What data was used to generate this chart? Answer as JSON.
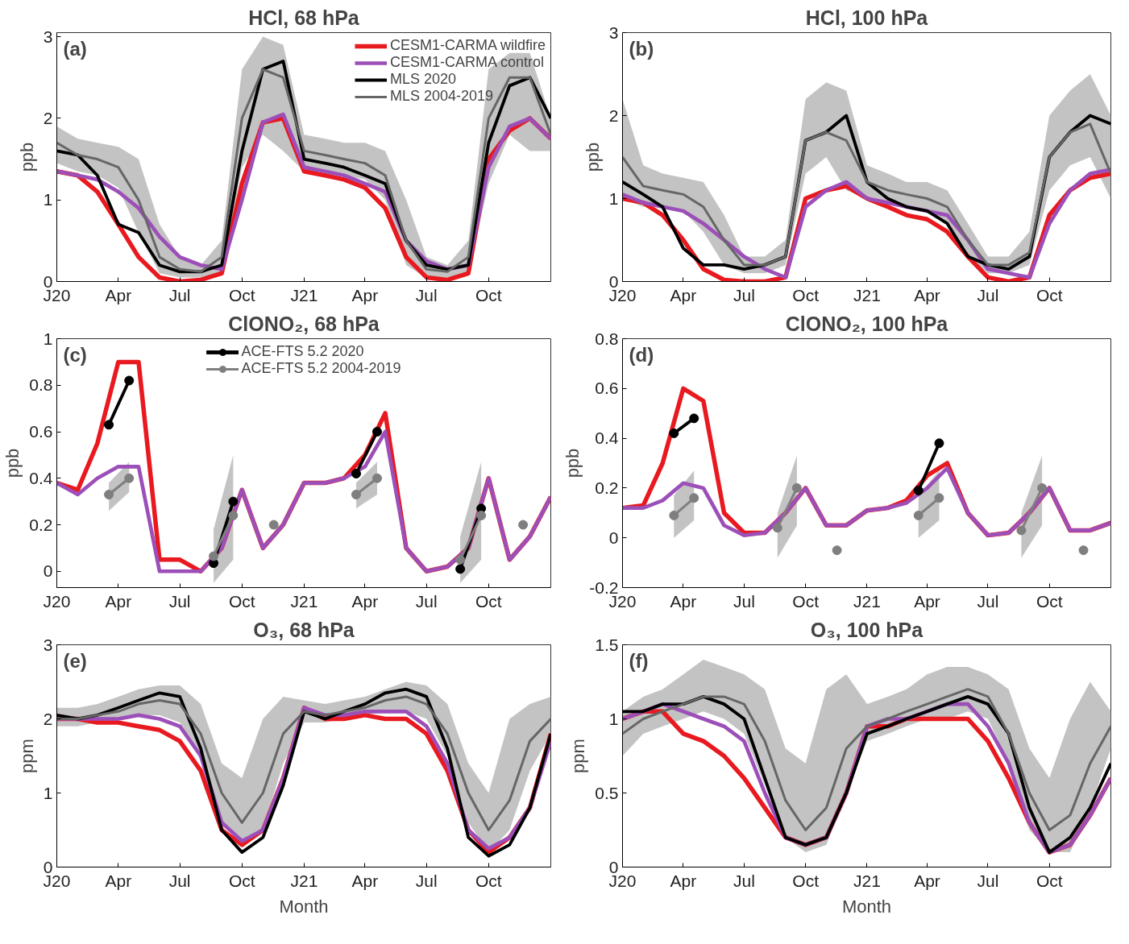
{
  "chart_data": [
    {
      "type": "line",
      "title": "HCl, 68 hPa",
      "ylabel": "ppb",
      "annotations": [
        "(a)"
      ],
      "legend": "top right",
      "marker": "none",
      "x": [
        "2020-01-01",
        "2020-02-01",
        "2020-03-01",
        "2020-04-01",
        "2020-05-01",
        "2020-06-01",
        "2020-07-01",
        "2020-08-01",
        "2020-09-01",
        "2020-10-01",
        "2020-11-01",
        "2020-12-01",
        "2021-01-01",
        "2021-02-01",
        "2021-03-01",
        "2021-04-01",
        "2021-05-01",
        "2021-06-01",
        "2021-07-01",
        "2021-08-01",
        "2021-09-01",
        "2021-10-01",
        "2021-11-01",
        "2021-12-01",
        "2022-01-01"
      ],
      "xlim": [
        "2020-01-01",
        "2022-01-01"
      ],
      "xticks": [
        {
          "value": "2020-01-01",
          "label": "J20"
        },
        {
          "value": "2020-04-01",
          "label": "Apr"
        },
        {
          "value": "2020-07-01",
          "label": "Jul"
        },
        {
          "value": "2020-10-01",
          "label": "Oct"
        },
        {
          "value": "2021-01-01",
          "label": "J21"
        },
        {
          "value": "2021-04-01",
          "label": "Apr"
        },
        {
          "value": "2021-07-01",
          "label": "Jul"
        },
        {
          "value": "2021-10-01",
          "label": "Oct"
        }
      ],
      "ylim": [
        0,
        3.05
      ],
      "yticks": [
        0,
        1,
        2,
        3
      ],
      "series": [
        {
          "name": "CESM1-CARMA wildfire",
          "color": "#e8191f",
          "values": [
            1.35,
            1.3,
            1.1,
            0.7,
            0.3,
            0.05,
            0.0,
            0.02,
            0.1,
            1.2,
            1.95,
            2.0,
            1.35,
            1.3,
            1.25,
            1.15,
            0.9,
            0.3,
            0.05,
            0.02,
            0.1,
            1.5,
            1.85,
            2.0,
            1.75
          ]
        },
        {
          "name": "CESM1-CARMA control",
          "color": "#9c4fb8",
          "values": [
            1.35,
            1.3,
            1.25,
            1.1,
            0.9,
            0.55,
            0.3,
            0.2,
            0.15,
            1.0,
            1.95,
            2.05,
            1.4,
            1.35,
            1.3,
            1.2,
            1.1,
            0.5,
            0.25,
            0.15,
            0.2,
            1.4,
            1.9,
            2.0,
            1.75
          ]
        },
        {
          "name": "MLS 2020",
          "color": "#000000",
          "values": [
            1.6,
            1.55,
            1.3,
            0.7,
            0.6,
            0.2,
            0.12,
            0.12,
            0.2,
            1.6,
            2.6,
            2.7,
            1.5,
            1.45,
            1.4,
            1.3,
            1.2,
            0.5,
            0.2,
            0.15,
            0.2,
            1.7,
            2.4,
            2.5,
            2.0
          ]
        },
        {
          "name": "MLS 2004-2019",
          "color": "#666666",
          "values": [
            1.7,
            1.55,
            1.5,
            1.4,
            1.0,
            0.3,
            0.15,
            0.12,
            0.3,
            2.0,
            2.6,
            2.5,
            1.6,
            1.55,
            1.5,
            1.45,
            1.3,
            0.5,
            0.15,
            0.12,
            0.3,
            2.0,
            2.5,
            2.5,
            1.8
          ],
          "lower": [
            1.45,
            1.35,
            1.3,
            1.15,
            0.6,
            0.1,
            0.05,
            0.05,
            0.1,
            1.4,
            1.8,
            1.6,
            1.35,
            1.35,
            1.3,
            1.25,
            1.0,
            0.2,
            0.05,
            0.05,
            0.1,
            1.2,
            1.8,
            1.6,
            1.6
          ],
          "upper": [
            1.9,
            1.75,
            1.7,
            1.65,
            1.5,
            0.7,
            0.3,
            0.2,
            0.5,
            2.6,
            3.0,
            2.9,
            1.8,
            1.75,
            1.7,
            1.7,
            1.6,
            1.0,
            0.3,
            0.2,
            0.5,
            2.6,
            2.8,
            2.8,
            2.0
          ]
        }
      ]
    },
    {
      "type": "line",
      "title": "HCl, 100 hPa",
      "ylabel": "ppb",
      "annotations": [
        "(b)"
      ],
      "marker": "none",
      "x": [
        "2020-01-01",
        "2020-02-01",
        "2020-03-01",
        "2020-04-01",
        "2020-05-01",
        "2020-06-01",
        "2020-07-01",
        "2020-08-01",
        "2020-09-01",
        "2020-10-01",
        "2020-11-01",
        "2020-12-01",
        "2021-01-01",
        "2021-02-01",
        "2021-03-01",
        "2021-04-01",
        "2021-05-01",
        "2021-06-01",
        "2021-07-01",
        "2021-08-01",
        "2021-09-01",
        "2021-10-01",
        "2021-11-01",
        "2021-12-01",
        "2022-01-01"
      ],
      "xlim": [
        "2020-01-01",
        "2022-01-01"
      ],
      "xticks": [
        {
          "value": "2020-01-01",
          "label": "J20"
        },
        {
          "value": "2020-04-01",
          "label": "Apr"
        },
        {
          "value": "2020-07-01",
          "label": "Jul"
        },
        {
          "value": "2020-10-01",
          "label": "Oct"
        },
        {
          "value": "2021-01-01",
          "label": "J21"
        },
        {
          "value": "2021-04-01",
          "label": "Apr"
        },
        {
          "value": "2021-07-01",
          "label": "Jul"
        },
        {
          "value": "2021-10-01",
          "label": "Oct"
        }
      ],
      "ylim": [
        0,
        3
      ],
      "yticks": [
        0,
        1,
        2,
        3
      ],
      "series": [
        {
          "color": "#e8191f",
          "values": [
            1.0,
            0.95,
            0.8,
            0.5,
            0.15,
            0.02,
            0.0,
            0.0,
            0.05,
            1.0,
            1.1,
            1.15,
            1.0,
            0.9,
            0.8,
            0.75,
            0.6,
            0.3,
            0.05,
            0.0,
            0.05,
            0.8,
            1.1,
            1.25,
            1.3
          ]
        },
        {
          "color": "#9c4fb8",
          "values": [
            1.05,
            0.95,
            0.9,
            0.85,
            0.7,
            0.5,
            0.3,
            0.15,
            0.05,
            0.9,
            1.1,
            1.2,
            1.0,
            0.95,
            0.9,
            0.85,
            0.8,
            0.5,
            0.15,
            0.1,
            0.05,
            0.7,
            1.1,
            1.3,
            1.35
          ]
        },
        {
          "color": "#000000",
          "values": [
            1.2,
            1.05,
            0.9,
            0.4,
            0.2,
            0.2,
            0.15,
            0.2,
            0.3,
            1.7,
            1.8,
            2.0,
            1.2,
            1.0,
            0.9,
            0.85,
            0.7,
            0.3,
            0.2,
            0.15,
            0.3,
            1.5,
            1.8,
            2.0,
            1.9
          ]
        },
        {
          "color": "#666666",
          "values": [
            1.5,
            1.15,
            1.1,
            1.05,
            0.9,
            0.5,
            0.2,
            0.2,
            0.3,
            1.7,
            1.8,
            1.7,
            1.2,
            1.1,
            1.05,
            1.0,
            0.9,
            0.5,
            0.2,
            0.2,
            0.35,
            1.5,
            1.8,
            1.9,
            1.3
          ],
          "lower": [
            1.0,
            0.9,
            0.9,
            0.85,
            0.6,
            0.2,
            0.1,
            0.1,
            0.2,
            1.3,
            1.5,
            1.1,
            1.0,
            0.95,
            0.9,
            0.85,
            0.7,
            0.3,
            0.1,
            0.1,
            0.2,
            1.1,
            1.4,
            1.5,
            1.0
          ],
          "upper": [
            2.2,
            1.4,
            1.3,
            1.25,
            1.2,
            0.8,
            0.3,
            0.3,
            0.5,
            2.2,
            2.4,
            2.3,
            1.4,
            1.3,
            1.2,
            1.2,
            1.1,
            0.7,
            0.3,
            0.3,
            0.6,
            2.0,
            2.3,
            2.5,
            2.0
          ]
        }
      ]
    },
    {
      "type": "line",
      "title": "ClONO₂, 68 hPa",
      "ylabel": "ppb",
      "annotations": [
        "(c)"
      ],
      "legend": "top",
      "marker": "none",
      "x": [
        "2020-01-01",
        "2020-02-01",
        "2020-03-01",
        "2020-04-01",
        "2020-05-01",
        "2020-06-01",
        "2020-07-01",
        "2020-08-01",
        "2020-09-01",
        "2020-10-01",
        "2020-11-01",
        "2020-12-01",
        "2021-01-01",
        "2021-02-01",
        "2021-03-01",
        "2021-04-01",
        "2021-05-01",
        "2021-06-01",
        "2021-07-01",
        "2021-08-01",
        "2021-09-01",
        "2021-10-01",
        "2021-11-01",
        "2021-12-01",
        "2022-01-01"
      ],
      "xlim": [
        "2020-01-01",
        "2022-01-01"
      ],
      "xticks": [
        {
          "value": "2020-01-01",
          "label": "J20"
        },
        {
          "value": "2020-04-01",
          "label": "Apr"
        },
        {
          "value": "2020-07-01",
          "label": "Jul"
        },
        {
          "value": "2020-10-01",
          "label": "Oct"
        },
        {
          "value": "2021-01-01",
          "label": "J21"
        },
        {
          "value": "2021-04-01",
          "label": "Apr"
        },
        {
          "value": "2021-07-01",
          "label": "Jul"
        },
        {
          "value": "2021-10-01",
          "label": "Oct"
        }
      ],
      "ylim": [
        -0.07,
        1
      ],
      "yticks": [
        0,
        0.2,
        0.4,
        0.6,
        0.8,
        1
      ],
      "series": [
        {
          "color": "#e8191f",
          "values": [
            0.38,
            0.35,
            0.55,
            0.9,
            0.9,
            0.05,
            0.05,
            0.0,
            0.1,
            0.35,
            0.1,
            0.2,
            0.38,
            0.38,
            0.4,
            0.5,
            0.68,
            0.1,
            0.0,
            0.02,
            0.1,
            0.4,
            0.05,
            0.15,
            0.32
          ]
        },
        {
          "color": "#9c4fb8",
          "values": [
            0.38,
            0.33,
            0.4,
            0.45,
            0.45,
            0.0,
            0.0,
            0.0,
            0.1,
            0.35,
            0.1,
            0.2,
            0.38,
            0.38,
            0.4,
            0.45,
            0.6,
            0.1,
            0.0,
            0.02,
            0.1,
            0.4,
            0.05,
            0.15,
            0.32
          ]
        },
        {
          "name": "ACE-FTS 5.2 2020",
          "color": "#000000",
          "marker": "circle",
          "x": [
            "2020-03-18",
            "2020-04-17",
            "2020-06-01",
            "2020-08-20",
            "2020-09-18",
            "2020-12-01",
            "2021-03-19",
            "2021-04-19",
            "2021-06-01",
            "2021-08-20",
            "2021-09-20"
          ],
          "values": [
            0.63,
            0.82,
            null,
            0.035,
            0.3,
            null,
            0.42,
            0.6,
            null,
            0.01,
            0.27
          ]
        },
        {
          "name": "ACE-FTS 5.2 2004-2019",
          "color": "#7f7f7f",
          "marker": "circle",
          "x": [
            "2020-03-18",
            "2020-04-17",
            "2020-06-01",
            "2020-08-20",
            "2020-09-18",
            "2020-10-20",
            "2020-11-17",
            "2021-01-01",
            "2021-03-19",
            "2021-04-19",
            "2021-06-01",
            "2021-08-20",
            "2021-09-20",
            "2021-10-20",
            "2021-11-21"
          ],
          "values": [
            0.33,
            0.4,
            null,
            0.065,
            0.24,
            null,
            0.2,
            null,
            0.33,
            0.4,
            null,
            0.05,
            0.24,
            null,
            0.2
          ],
          "lower": [
            0.26,
            0.34,
            null,
            -0.05,
            0.05,
            null,
            null,
            null,
            0.27,
            0.33,
            null,
            -0.05,
            0.05,
            null,
            null
          ],
          "upper": [
            0.38,
            0.47,
            null,
            0.18,
            0.5,
            null,
            null,
            null,
            0.38,
            0.47,
            null,
            0.15,
            0.47,
            null,
            null
          ]
        }
      ]
    },
    {
      "type": "line",
      "title": "ClONO₂, 100 hPa",
      "ylabel": "ppb",
      "annotations": [
        "(d)"
      ],
      "marker": "none",
      "x": [
        "2020-01-01",
        "2020-02-01",
        "2020-03-01",
        "2020-04-01",
        "2020-05-01",
        "2020-06-01",
        "2020-07-01",
        "2020-08-01",
        "2020-09-01",
        "2020-10-01",
        "2020-11-01",
        "2020-12-01",
        "2021-01-01",
        "2021-02-01",
        "2021-03-01",
        "2021-04-01",
        "2021-05-01",
        "2021-06-01",
        "2021-07-01",
        "2021-08-01",
        "2021-09-01",
        "2021-10-01",
        "2021-11-01",
        "2021-12-01",
        "2022-01-01"
      ],
      "xlim": [
        "2020-01-01",
        "2022-01-01"
      ],
      "xticks": [
        {
          "value": "2020-01-01",
          "label": "J20"
        },
        {
          "value": "2020-04-01",
          "label": "Apr"
        },
        {
          "value": "2020-07-01",
          "label": "Jul"
        },
        {
          "value": "2020-10-01",
          "label": "Oct"
        },
        {
          "value": "2021-01-01",
          "label": "J21"
        },
        {
          "value": "2021-04-01",
          "label": "Apr"
        },
        {
          "value": "2021-07-01",
          "label": "Jul"
        },
        {
          "value": "2021-10-01",
          "label": "Oct"
        }
      ],
      "ylim": [
        -0.2,
        0.8
      ],
      "yticks": [
        -0.2,
        0,
        0.2,
        0.4,
        0.6,
        0.8
      ],
      "series": [
        {
          "color": "#e8191f",
          "values": [
            0.12,
            0.13,
            0.3,
            0.6,
            0.55,
            0.1,
            0.02,
            0.02,
            0.1,
            0.2,
            0.05,
            0.05,
            0.11,
            0.12,
            0.15,
            0.25,
            0.3,
            0.1,
            0.01,
            0.02,
            0.1,
            0.2,
            0.03,
            0.03,
            0.06
          ]
        },
        {
          "color": "#9c4fb8",
          "values": [
            0.12,
            0.12,
            0.15,
            0.22,
            0.2,
            0.05,
            0.01,
            0.02,
            0.1,
            0.2,
            0.05,
            0.05,
            0.11,
            0.12,
            0.14,
            0.2,
            0.28,
            0.1,
            0.01,
            0.02,
            0.1,
            0.2,
            0.03,
            0.03,
            0.06
          ]
        },
        {
          "color": "#000000",
          "marker": "circle",
          "x": [
            "2020-03-18",
            "2020-04-17",
            "2020-12-01",
            "2021-03-19",
            "2021-04-19"
          ],
          "values": [
            0.42,
            0.48,
            null,
            0.19,
            0.38
          ]
        },
        {
          "color": "#7f7f7f",
          "marker": "circle",
          "x": [
            "2020-03-18",
            "2020-04-17",
            "2020-06-01",
            "2020-08-20",
            "2020-09-18",
            "2020-10-20",
            "2020-11-17",
            "2021-01-01",
            "2021-03-19",
            "2021-04-19",
            "2021-06-01",
            "2021-08-20",
            "2021-09-20",
            "2021-10-20",
            "2021-11-21"
          ],
          "values": [
            0.09,
            0.16,
            null,
            0.04,
            0.2,
            null,
            -0.05,
            null,
            0.09,
            0.16,
            null,
            0.03,
            0.2,
            null,
            -0.05
          ],
          "lower": [
            0.0,
            0.07,
            null,
            -0.08,
            0.05,
            null,
            null,
            null,
            0.0,
            0.07,
            null,
            -0.08,
            0.05,
            null,
            null
          ],
          "upper": [
            0.17,
            0.27,
            null,
            0.1,
            0.33,
            null,
            null,
            null,
            0.17,
            0.27,
            null,
            0.1,
            0.33,
            null,
            null
          ]
        }
      ]
    },
    {
      "type": "line",
      "title": "O₃, 68 hPa",
      "ylabel": "ppm",
      "xlabel": "Month",
      "annotations": [
        "(e)"
      ],
      "marker": "none",
      "x": [
        "2020-01-01",
        "2020-02-01",
        "2020-03-01",
        "2020-04-01",
        "2020-05-01",
        "2020-06-01",
        "2020-07-01",
        "2020-08-01",
        "2020-09-01",
        "2020-10-01",
        "2020-11-01",
        "2020-12-01",
        "2021-01-01",
        "2021-02-01",
        "2021-03-01",
        "2021-04-01",
        "2021-05-01",
        "2021-06-01",
        "2021-07-01",
        "2021-08-01",
        "2021-09-01",
        "2021-10-01",
        "2021-11-01",
        "2021-12-01",
        "2022-01-01"
      ],
      "xlim": [
        "2020-01-01",
        "2022-01-01"
      ],
      "xticks": [
        {
          "value": "2020-01-01",
          "label": "J20"
        },
        {
          "value": "2020-04-01",
          "label": "Apr"
        },
        {
          "value": "2020-07-01",
          "label": "Jul"
        },
        {
          "value": "2020-10-01",
          "label": "Oct"
        },
        {
          "value": "2021-01-01",
          "label": "J21"
        },
        {
          "value": "2021-04-01",
          "label": "Apr"
        },
        {
          "value": "2021-07-01",
          "label": "Jul"
        },
        {
          "value": "2021-10-01",
          "label": "Oct"
        }
      ],
      "ylim": [
        0,
        3
      ],
      "yticks": [
        0,
        1,
        2,
        3
      ],
      "series": [
        {
          "color": "#e8191f",
          "values": [
            2.0,
            2.0,
            1.95,
            1.95,
            1.9,
            1.85,
            1.7,
            1.3,
            0.5,
            0.3,
            0.5,
            1.2,
            2.15,
            2.0,
            2.0,
            2.05,
            2.0,
            2.0,
            1.8,
            1.3,
            0.5,
            0.2,
            0.4,
            0.8,
            1.8
          ]
        },
        {
          "color": "#9c4fb8",
          "values": [
            2.0,
            2.0,
            2.0,
            2.0,
            2.05,
            2.0,
            1.9,
            1.5,
            0.6,
            0.35,
            0.5,
            1.2,
            2.15,
            2.05,
            2.05,
            2.1,
            2.1,
            2.1,
            1.9,
            1.4,
            0.5,
            0.25,
            0.4,
            0.8,
            1.7
          ]
        },
        {
          "color": "#000000",
          "values": [
            2.05,
            2.0,
            2.05,
            2.15,
            2.25,
            2.35,
            2.3,
            1.6,
            0.5,
            0.2,
            0.4,
            1.1,
            2.1,
            2.0,
            2.1,
            2.2,
            2.35,
            2.4,
            2.3,
            1.6,
            0.4,
            0.15,
            0.3,
            0.8,
            1.8
          ]
        },
        {
          "color": "#666666",
          "values": [
            2.0,
            2.0,
            2.05,
            2.1,
            2.2,
            2.25,
            2.2,
            1.8,
            1.0,
            0.6,
            1.0,
            1.8,
            2.1,
            2.05,
            2.1,
            2.15,
            2.25,
            2.3,
            2.2,
            1.8,
            1.0,
            0.5,
            0.9,
            1.7,
            2.0
          ],
          "lower": [
            1.9,
            1.9,
            1.95,
            2.0,
            2.05,
            2.05,
            1.95,
            1.5,
            0.6,
            0.3,
            0.5,
            1.4,
            1.95,
            1.95,
            2.0,
            2.05,
            2.1,
            2.1,
            2.0,
            1.5,
            0.6,
            0.2,
            0.5,
            1.3,
            1.8
          ],
          "upper": [
            2.15,
            2.15,
            2.2,
            2.3,
            2.4,
            2.45,
            2.45,
            2.2,
            1.4,
            1.2,
            2.0,
            2.3,
            2.25,
            2.2,
            2.25,
            2.3,
            2.4,
            2.5,
            2.45,
            2.2,
            1.4,
            1.0,
            2.0,
            2.2,
            2.3
          ]
        }
      ]
    },
    {
      "type": "line",
      "title": "O₃, 100 hPa",
      "ylabel": "ppm",
      "xlabel": "Month",
      "annotations": [
        "(f)"
      ],
      "marker": "none",
      "x": [
        "2020-01-01",
        "2020-02-01",
        "2020-03-01",
        "2020-04-01",
        "2020-05-01",
        "2020-06-01",
        "2020-07-01",
        "2020-08-01",
        "2020-09-01",
        "2020-10-01",
        "2020-11-01",
        "2020-12-01",
        "2021-01-01",
        "2021-02-01",
        "2021-03-01",
        "2021-04-01",
        "2021-05-01",
        "2021-06-01",
        "2021-07-01",
        "2021-08-01",
        "2021-09-01",
        "2021-10-01",
        "2021-11-01",
        "2021-12-01",
        "2022-01-01"
      ],
      "xlim": [
        "2020-01-01",
        "2022-01-01"
      ],
      "xticks": [
        {
          "value": "2020-01-01",
          "label": "J20"
        },
        {
          "value": "2020-04-01",
          "label": "Apr"
        },
        {
          "value": "2020-07-01",
          "label": "Jul"
        },
        {
          "value": "2020-10-01",
          "label": "Oct"
        },
        {
          "value": "2021-01-01",
          "label": "J21"
        },
        {
          "value": "2021-04-01",
          "label": "Apr"
        },
        {
          "value": "2021-07-01",
          "label": "Jul"
        },
        {
          "value": "2021-10-01",
          "label": "Oct"
        }
      ],
      "ylim": [
        0,
        1.5
      ],
      "yticks": [
        0,
        0.5,
        1,
        1.5
      ],
      "series": [
        {
          "color": "#e8191f",
          "values": [
            1.0,
            1.05,
            1.05,
            0.9,
            0.85,
            0.75,
            0.6,
            0.4,
            0.2,
            0.15,
            0.2,
            0.5,
            0.95,
            0.95,
            1.0,
            1.0,
            1.0,
            1.0,
            0.85,
            0.6,
            0.3,
            0.1,
            0.15,
            0.35,
            0.6
          ]
        },
        {
          "color": "#9c4fb8",
          "values": [
            1.0,
            1.05,
            1.1,
            1.05,
            1.0,
            0.95,
            0.85,
            0.5,
            0.2,
            0.15,
            0.2,
            0.5,
            0.95,
            1.0,
            1.0,
            1.05,
            1.1,
            1.1,
            0.95,
            0.7,
            0.3,
            0.1,
            0.15,
            0.35,
            0.6
          ]
        },
        {
          "color": "#000000",
          "values": [
            1.05,
            1.05,
            1.1,
            1.1,
            1.15,
            1.1,
            1.0,
            0.6,
            0.2,
            0.15,
            0.2,
            0.5,
            0.9,
            0.95,
            1.0,
            1.05,
            1.1,
            1.15,
            1.1,
            0.9,
            0.4,
            0.1,
            0.2,
            0.4,
            0.7
          ]
        },
        {
          "color": "#666666",
          "values": [
            0.9,
            1.0,
            1.05,
            1.1,
            1.15,
            1.15,
            1.1,
            0.85,
            0.45,
            0.25,
            0.4,
            0.8,
            0.95,
            1.0,
            1.05,
            1.1,
            1.15,
            1.2,
            1.15,
            0.9,
            0.5,
            0.25,
            0.35,
            0.7,
            0.95
          ],
          "lower": [
            0.75,
            0.9,
            0.95,
            1.0,
            1.05,
            1.0,
            0.9,
            0.55,
            0.2,
            0.1,
            0.15,
            0.5,
            0.85,
            0.9,
            0.95,
            1.0,
            1.0,
            1.05,
            1.0,
            0.7,
            0.25,
            0.1,
            0.1,
            0.4,
            0.8
          ],
          "upper": [
            1.05,
            1.15,
            1.2,
            1.3,
            1.4,
            1.35,
            1.3,
            1.2,
            0.8,
            0.7,
            1.2,
            1.3,
            1.1,
            1.15,
            1.2,
            1.3,
            1.35,
            1.35,
            1.3,
            1.2,
            0.8,
            0.6,
            1.0,
            1.25,
            1.05
          ]
        }
      ]
    }
  ]
}
